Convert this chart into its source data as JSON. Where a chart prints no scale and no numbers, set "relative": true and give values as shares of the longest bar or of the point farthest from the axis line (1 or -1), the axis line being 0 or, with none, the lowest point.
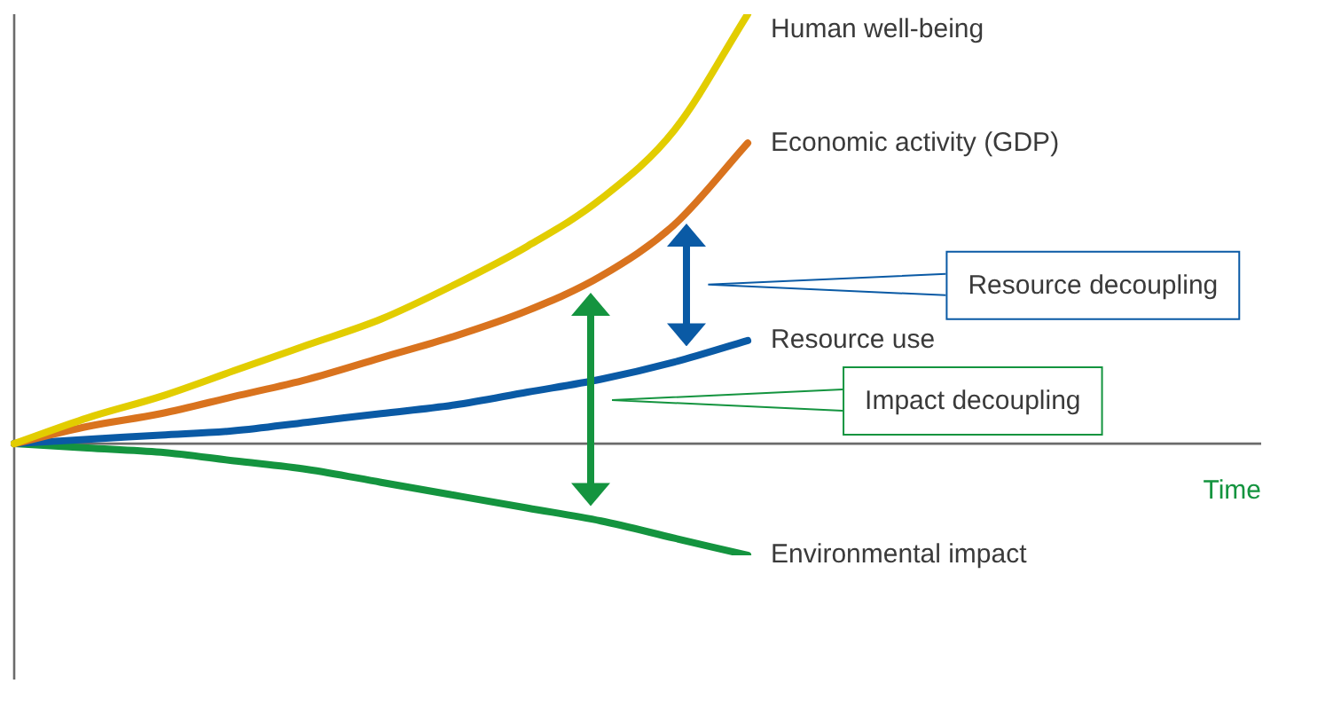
{
  "chart_data": {
    "type": "line",
    "relative": true,
    "xlabel": "Time",
    "legend": false,
    "marker": "none",
    "categories": [
      null,
      null,
      null,
      null,
      null,
      null,
      null,
      null,
      null,
      null,
      null,
      null,
      null,
      null,
      null,
      null,
      null,
      null
    ],
    "series": [
      {
        "name": "Human well-being",
        "color": "#e2cd00",
        "values": [
          0,
          0.06,
          0.11,
          0.17,
          0.23,
          0.29,
          0.37,
          0.46,
          0.57,
          0.73,
          1,
          null,
          null,
          null,
          null,
          null,
          null,
          null
        ]
      },
      {
        "name": "Economic activity (GDP)",
        "color": "#d9731e",
        "values": [
          0,
          0.04,
          0.07,
          0.11,
          0.15,
          0.2,
          0.25,
          0.31,
          0.39,
          0.51,
          0.7,
          null,
          null,
          null,
          null,
          null,
          null,
          null
        ]
      },
      {
        "name": "Resource use",
        "color": "#0a5aa5",
        "values": [
          0,
          0.01,
          0.02,
          0.03,
          0.05,
          0.07,
          0.09,
          0.12,
          0.15,
          0.19,
          0.24,
          null,
          null,
          null,
          null,
          null,
          null,
          null
        ]
      },
      {
        "name": "Environmental impact",
        "color": "#14943f",
        "values": [
          0,
          -0.01,
          -0.02,
          -0.04,
          -0.06,
          -0.09,
          -0.12,
          -0.15,
          -0.18,
          -0.22,
          -0.26,
          null,
          null,
          null,
          null,
          null,
          null,
          null
        ]
      }
    ],
    "annotations": [
      "Resource decoupling",
      "Impact decoupling"
    ]
  }
}
